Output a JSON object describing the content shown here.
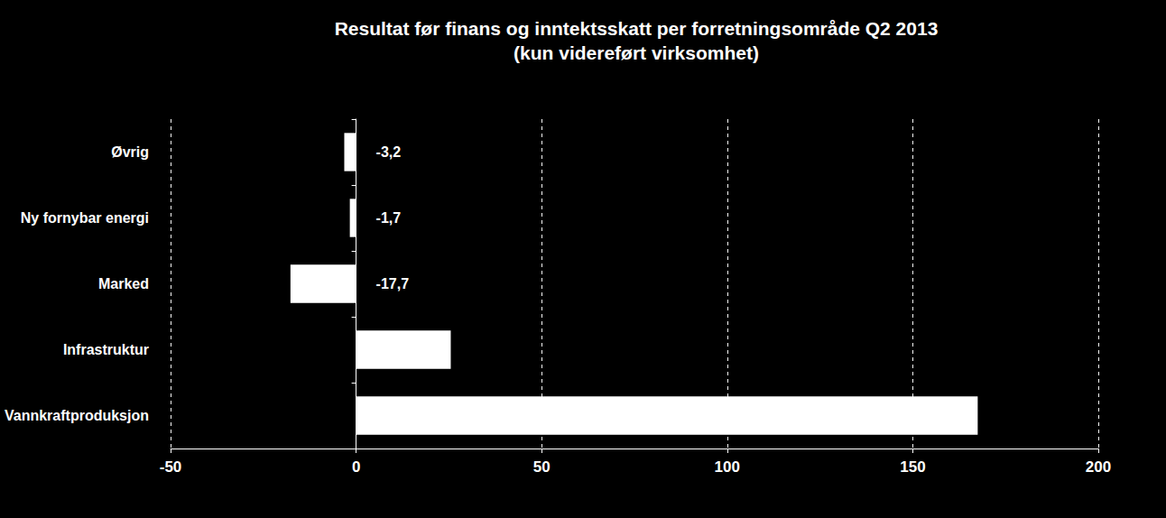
{
  "chart_data": {
    "type": "bar",
    "orientation": "horizontal",
    "title": "Resultat før finans og inntektsskatt per forretningsområde Q2 2013",
    "subtitle": "(kun videreført virksomhet)",
    "categories": [
      "Øvrig",
      "Ny fornybar energi",
      "Marked",
      "Infrastruktur",
      "Vannkraftproduksjon"
    ],
    "values": [
      -3.2,
      -1.7,
      -17.7,
      25.5,
      167.5
    ],
    "value_labels": [
      "-3,2",
      "-1,7",
      "-17,7",
      null,
      null
    ],
    "data_labels": true,
    "color": "#ffffff",
    "xlim": [
      -50,
      200
    ],
    "xticks": [
      -50,
      0,
      50,
      100,
      150,
      200
    ],
    "grid": true
  }
}
